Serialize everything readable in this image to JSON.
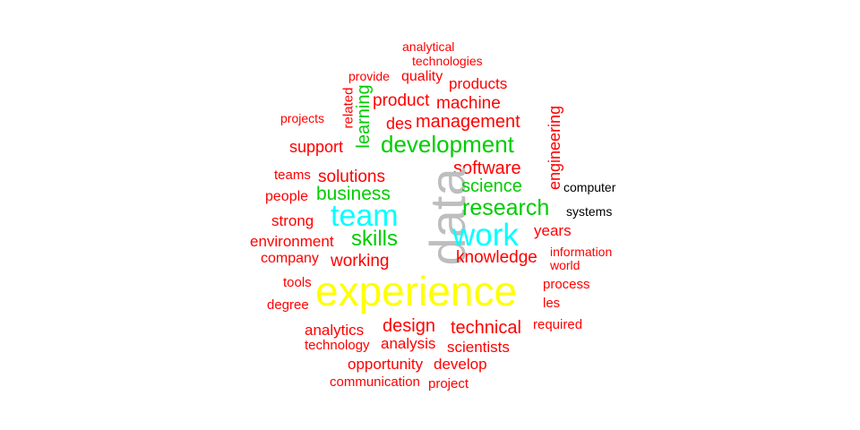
{
  "colors": {
    "red": "#ff0000",
    "green": "#00cc00",
    "cyan": "#00ffff",
    "yellow": "#ffff00",
    "gray": "#bebebe",
    "black": "#000000"
  },
  "words": {
    "analytical": "analytical",
    "technologies": "technologies",
    "provide": "provide",
    "quality": "quality",
    "products": "products",
    "related": "related",
    "learning": "learning",
    "product": "product",
    "machine": "machine",
    "projects": "projects",
    "des": "des",
    "management": "management",
    "engineering": "engineering",
    "support": "support",
    "development": "development",
    "software": "software",
    "teams": "teams",
    "solutions": "solutions",
    "data": "data",
    "computer": "computer",
    "people": "people",
    "business": "business",
    "science": "science",
    "research": "research",
    "systems": "systems",
    "strong": "strong",
    "team": "team",
    "environment": "environment",
    "skills": "skills",
    "work": "work",
    "years": "years",
    "information": "information",
    "company": "company",
    "working": "working",
    "knowledge": "knowledge",
    "world": "world",
    "tools": "tools",
    "experience": "experience",
    "process": "process",
    "degree": "degree",
    "les": "les",
    "design": "design",
    "required": "required",
    "analytics": "analytics",
    "technical": "technical",
    "technology": "technology",
    "analysis": "analysis",
    "scientists": "scientists",
    "opportunity": "opportunity",
    "develop": "develop",
    "communication": "communication",
    "project": "project"
  }
}
